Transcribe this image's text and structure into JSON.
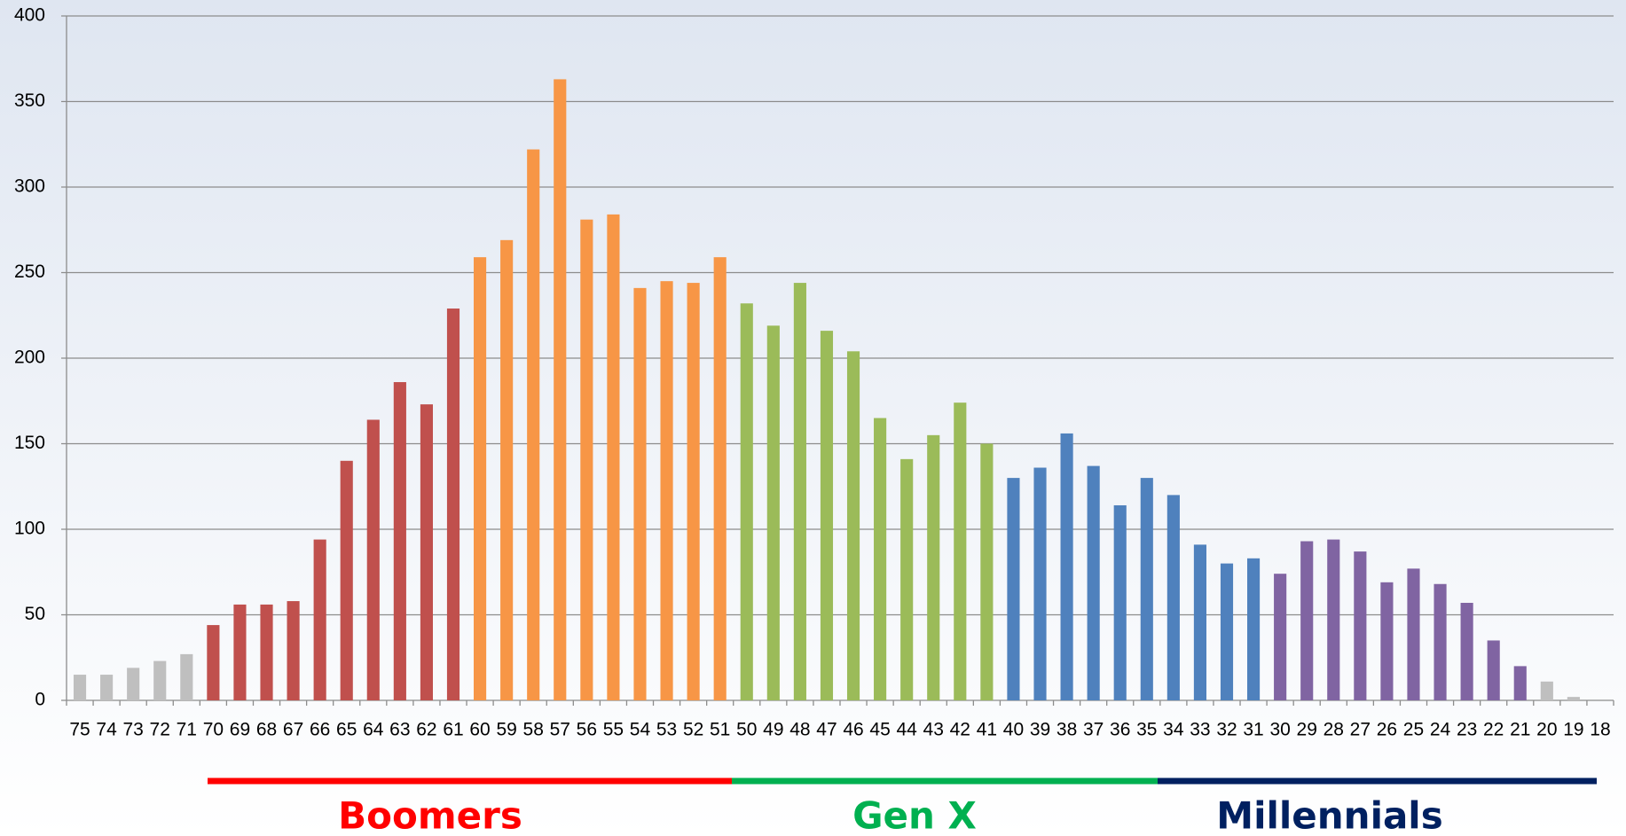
{
  "chart_data": {
    "type": "bar",
    "categories": [
      "75",
      "74",
      "73",
      "72",
      "71",
      "70",
      "69",
      "68",
      "67",
      "66",
      "65",
      "64",
      "63",
      "62",
      "61",
      "60",
      "59",
      "58",
      "57",
      "56",
      "55",
      "54",
      "53",
      "52",
      "51",
      "50",
      "49",
      "48",
      "47",
      "46",
      "45",
      "44",
      "43",
      "42",
      "41",
      "40",
      "39",
      "38",
      "37",
      "36",
      "35",
      "34",
      "33",
      "32",
      "31",
      "30",
      "29",
      "28",
      "27",
      "26",
      "25",
      "24",
      "23",
      "22",
      "21",
      "20",
      "19",
      "18"
    ],
    "values": [
      15,
      15,
      19,
      23,
      27,
      44,
      56,
      56,
      58,
      94,
      140,
      164,
      186,
      173,
      229,
      259,
      269,
      322,
      363,
      281,
      284,
      241,
      245,
      244,
      259,
      232,
      219,
      244,
      216,
      204,
      165,
      141,
      155,
      174,
      150,
      130,
      136,
      156,
      137,
      114,
      130,
      120,
      91,
      80,
      83,
      74,
      93,
      94,
      87,
      69,
      77,
      68,
      57,
      35,
      20,
      11,
      2,
      0
    ],
    "colors": [
      "#bfbfbf",
      "#bfbfbf",
      "#bfbfbf",
      "#bfbfbf",
      "#bfbfbf",
      "#c0504d",
      "#c0504d",
      "#c0504d",
      "#c0504d",
      "#c0504d",
      "#c0504d",
      "#c0504d",
      "#c0504d",
      "#c0504d",
      "#c0504d",
      "#f79646",
      "#f79646",
      "#f79646",
      "#f79646",
      "#f79646",
      "#f79646",
      "#f79646",
      "#f79646",
      "#f79646",
      "#f79646",
      "#9bbb59",
      "#9bbb59",
      "#9bbb59",
      "#9bbb59",
      "#9bbb59",
      "#9bbb59",
      "#9bbb59",
      "#9bbb59",
      "#9bbb59",
      "#9bbb59",
      "#4f81bd",
      "#4f81bd",
      "#4f81bd",
      "#4f81bd",
      "#4f81bd",
      "#4f81bd",
      "#4f81bd",
      "#4f81bd",
      "#4f81bd",
      "#4f81bd",
      "#8064a2",
      "#8064a2",
      "#8064a2",
      "#8064a2",
      "#8064a2",
      "#8064a2",
      "#8064a2",
      "#8064a2",
      "#8064a2",
      "#8064a2",
      "#bfbfbf",
      "#bfbfbf",
      "#bfbfbf"
    ],
    "ylim": [
      0,
      400
    ],
    "yticks": [
      0,
      50,
      100,
      150,
      200,
      250,
      300,
      350,
      400
    ],
    "grid": true,
    "annotations": [
      {
        "text": "Boomers",
        "color": "#ff0000"
      },
      {
        "text": "Gen X",
        "color": "#00b050"
      },
      {
        "text": "Millennials",
        "color": "#002060"
      }
    ]
  }
}
